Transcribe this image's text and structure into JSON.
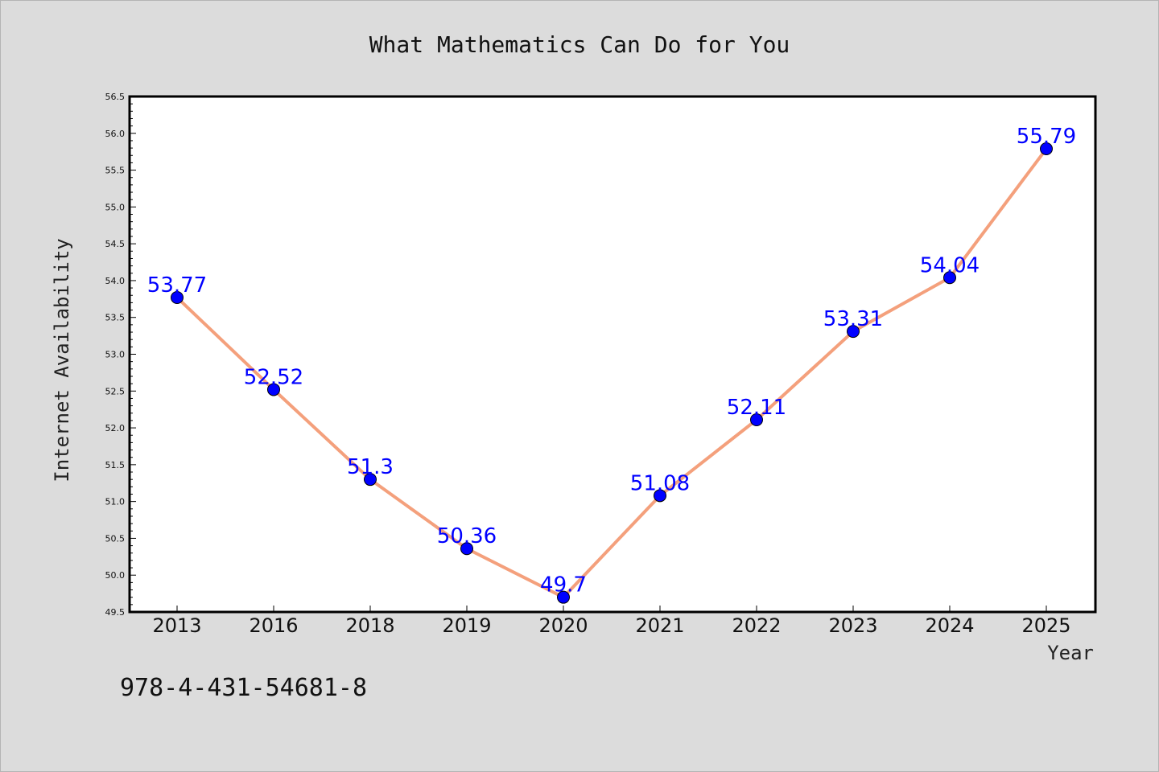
{
  "chart_data": {
    "type": "line",
    "title": "What Mathematics Can Do for You",
    "xlabel": "Year",
    "ylabel": "Internet Availability",
    "categories": [
      "2013",
      "2016",
      "2018",
      "2019",
      "2020",
      "2021",
      "2022",
      "2023",
      "2024",
      "2025"
    ],
    "series": [
      {
        "values": [
          53.77,
          52.52,
          51.3,
          50.36,
          49.7,
          51.08,
          52.11,
          53.31,
          54.04,
          55.79
        ],
        "labels": [
          "53.77",
          "52.52",
          "51.3",
          "50.36",
          "49.7",
          "51.08",
          "52.11",
          "53.31",
          "54.04",
          "55.79"
        ],
        "line_color": "#f4a07c",
        "marker_color": "#0000ff"
      }
    ],
    "ylim": [
      49.5,
      56.5
    ],
    "yticks": [
      "49.5",
      "50.0",
      "50.5",
      "51.0",
      "51.5",
      "52.0",
      "52.5",
      "53.0",
      "53.5",
      "54.0",
      "54.5",
      "55.0",
      "55.5",
      "56.0",
      "56.5"
    ],
    "grid": false,
    "colors": {
      "background": "#dcdcdc",
      "plot_area": "#ffffff",
      "axis": "#000000"
    }
  },
  "footnote": "978-4-431-54681-8"
}
